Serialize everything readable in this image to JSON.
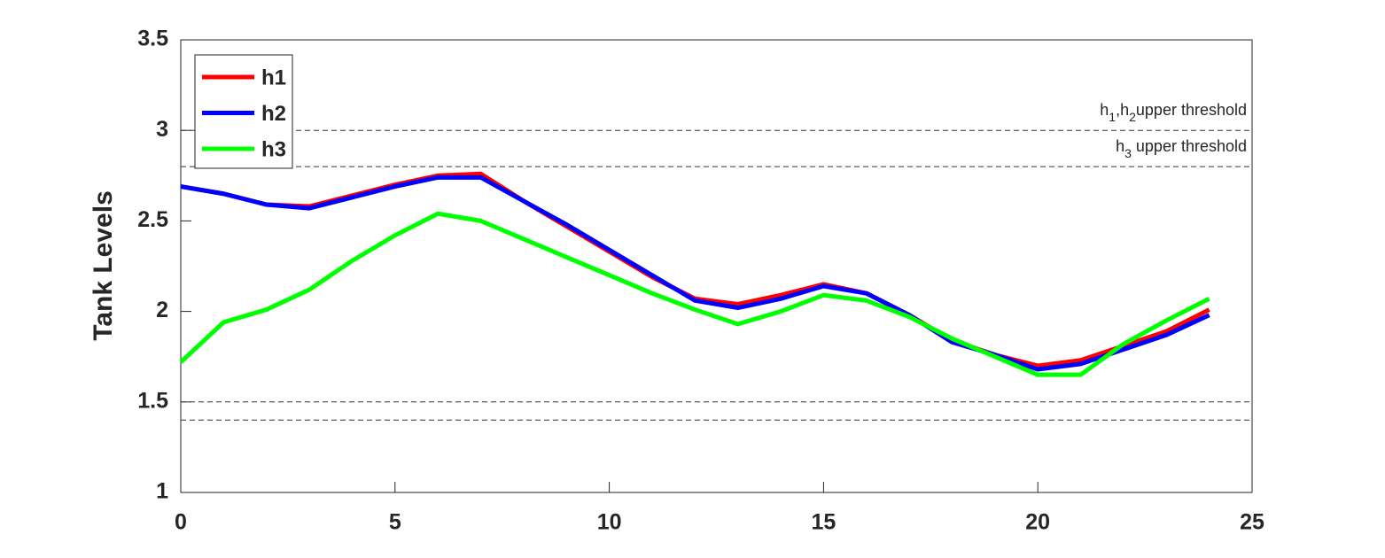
{
  "chart_data": {
    "type": "line",
    "y_label": "Tank Levels",
    "x": [
      0,
      1,
      2,
      3,
      4,
      5,
      6,
      7,
      8,
      9,
      10,
      11,
      12,
      13,
      14,
      15,
      16,
      17,
      18,
      19,
      20,
      21,
      22,
      23,
      24
    ],
    "series": [
      {
        "name": "h1",
        "color": "#ff0000",
        "values": [
          2.69,
          2.65,
          2.59,
          2.58,
          2.64,
          2.7,
          2.75,
          2.76,
          2.61,
          2.47,
          2.33,
          2.19,
          2.07,
          2.04,
          2.09,
          2.15,
          2.1,
          1.98,
          1.84,
          1.76,
          1.7,
          1.73,
          1.81,
          1.89,
          2.01
        ]
      },
      {
        "name": "h2",
        "color": "#0000ff",
        "values": [
          2.69,
          2.65,
          2.59,
          2.57,
          2.63,
          2.69,
          2.74,
          2.74,
          2.61,
          2.48,
          2.34,
          2.2,
          2.06,
          2.02,
          2.07,
          2.14,
          2.1,
          1.98,
          1.83,
          1.76,
          1.68,
          1.71,
          1.79,
          1.87,
          1.98
        ]
      },
      {
        "name": "h3",
        "color": "#00ff00",
        "values": [
          1.72,
          1.94,
          2.01,
          2.12,
          2.28,
          2.42,
          2.54,
          2.5,
          2.4,
          2.3,
          2.2,
          2.1,
          2.01,
          1.93,
          2.0,
          2.09,
          2.06,
          1.97,
          1.85,
          1.75,
          1.65,
          1.65,
          1.82,
          1.95,
          2.07
        ]
      }
    ],
    "thresholds": [
      {
        "value": 3,
        "label_parts": [
          {
            "text": "h"
          },
          {
            "text": "1",
            "sub": true
          },
          {
            "text": ",h"
          },
          {
            "text": "2",
            "sub": true
          },
          {
            "text": "upper threshold"
          }
        ]
      },
      {
        "value": 2.8,
        "label_parts": [
          {
            "text": "h"
          },
          {
            "text": "3",
            "sub": true
          },
          {
            "text": " upper threshold"
          }
        ]
      },
      {
        "value": 1.5
      },
      {
        "value": 1.4
      }
    ],
    "xlim": [
      0,
      25
    ],
    "xticks": [
      0,
      5,
      10,
      15,
      20,
      25
    ],
    "ylim": [
      1,
      3.5
    ],
    "yticks": [
      1,
      1.5,
      2,
      2.5,
      3,
      3.5
    ],
    "grid": false,
    "legend": "upper-left"
  }
}
